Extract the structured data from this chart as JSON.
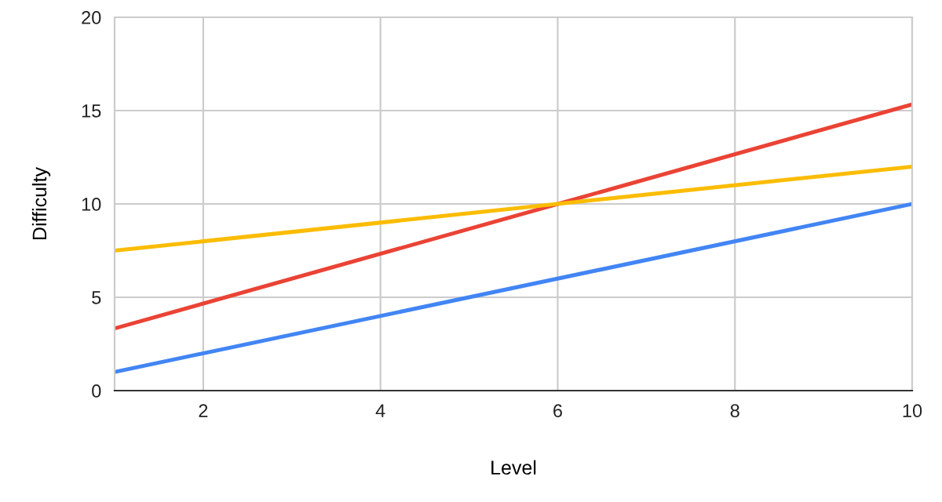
{
  "chart_data": {
    "type": "line",
    "xlabel": "Level",
    "ylabel": "Difficulty",
    "x": [
      1,
      10
    ],
    "series": [
      {
        "color": "#4285f4",
        "values": [
          1,
          10
        ]
      },
      {
        "color": "#ea4335",
        "values": [
          3.33,
          15.33
        ]
      },
      {
        "color": "#fbbc04",
        "values": [
          7.5,
          12
        ]
      }
    ],
    "xlim": [
      1,
      10
    ],
    "xticks": [
      2,
      4,
      6,
      8,
      10
    ],
    "ylim": [
      0,
      20
    ],
    "yticks": [
      0,
      5,
      10,
      15,
      20
    ],
    "grid": true,
    "legend": false
  }
}
